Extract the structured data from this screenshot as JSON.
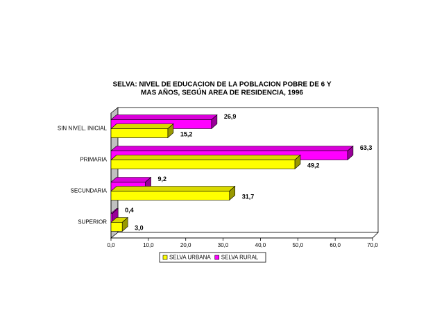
{
  "chart_data": {
    "type": "bar3d-horizontal",
    "title": [
      "SELVA: NIVEL  DE EDUCACION DE LA POBLACION POBRE DE 6 Y",
      "MAS AÑOS, SEGÚN AREA DE RESIDENCIA, 1996"
    ],
    "categories": [
      "SIN NIVEL, INICIAL",
      "PRIMARIA",
      "SECUNDARIA",
      "SUPERIOR"
    ],
    "series": [
      {
        "name": "SELVA URBANA",
        "color": "#ffff00",
        "values": [
          15.2,
          49.2,
          31.7,
          3.0
        ],
        "value_labels": [
          "15,2",
          "49,2",
          "31,7",
          "3,0"
        ]
      },
      {
        "name": "SELVA RURAL",
        "color": "#ff00ff",
        "values": [
          26.9,
          63.3,
          9.2,
          0.4
        ],
        "value_labels": [
          "26,9",
          "63,3",
          "9,2",
          "0,4"
        ]
      }
    ],
    "xlim": [
      0,
      70
    ],
    "xticks": [
      {
        "value": 0,
        "label": "0,0"
      },
      {
        "value": 10,
        "label": "10,0"
      },
      {
        "value": 20,
        "label": "20,0"
      },
      {
        "value": 30,
        "label": "30,0"
      },
      {
        "value": 40,
        "label": "40,0"
      },
      {
        "value": 50,
        "label": "50,0"
      },
      {
        "value": 60,
        "label": "60,0"
      },
      {
        "value": 70,
        "label": "70,0"
      }
    ],
    "legend": "bottom"
  }
}
